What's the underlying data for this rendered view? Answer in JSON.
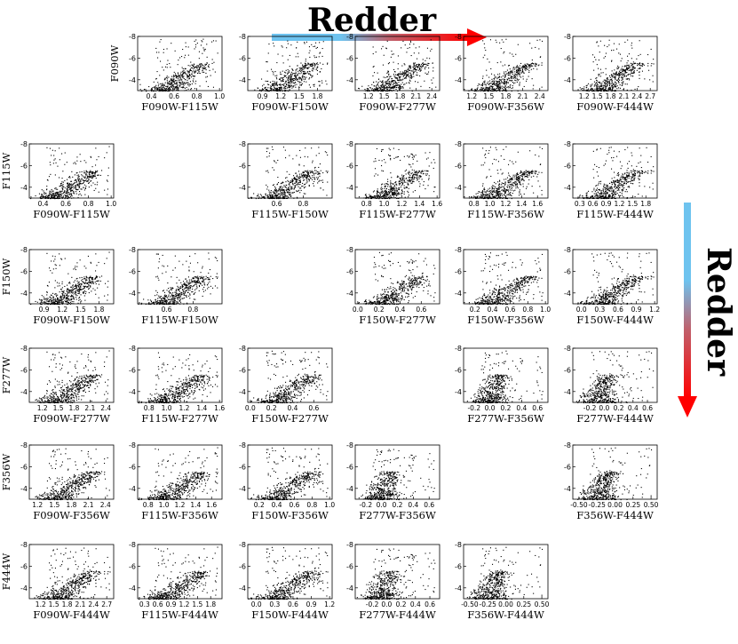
{
  "chart_data": {
    "type": "scatter",
    "title": "",
    "annotations": {
      "horizontal": "Redder",
      "vertical": "Redder"
    },
    "colors": {
      "arrow_start": "#6ec3ef",
      "arrow_end": "#ff0000",
      "points": "#000000"
    },
    "grid": false,
    "y_axis": {
      "inverted": true,
      "range": [
        -3,
        -8
      ],
      "ticks": [
        "-8",
        "-6",
        "-4"
      ]
    },
    "panels": [
      {
        "row": 0,
        "col": 1,
        "xlabel": "F090W-F115W",
        "ylabel": "F090W",
        "xticks": [
          "0.4",
          "0.6",
          "0.8",
          "1.0"
        ],
        "x_range": [
          0.3,
          1.0
        ]
      },
      {
        "row": 0,
        "col": 2,
        "xlabel": "F090W-F150W",
        "ylabel": "",
        "xticks": [
          "0.9",
          "1.2",
          "1.5",
          "1.8"
        ],
        "x_range": [
          0.7,
          2.0
        ]
      },
      {
        "row": 0,
        "col": 3,
        "xlabel": "F090W-F277W",
        "ylabel": "",
        "xticks": [
          "1.2",
          "1.5",
          "1.8",
          "2.1",
          "2.4"
        ],
        "x_range": [
          1.0,
          2.5
        ]
      },
      {
        "row": 0,
        "col": 4,
        "xlabel": "F090W-F356W",
        "ylabel": "",
        "xticks": [
          "1.2",
          "1.5",
          "1.8",
          "2.1",
          "2.4"
        ],
        "x_range": [
          1.1,
          2.5
        ]
      },
      {
        "row": 0,
        "col": 5,
        "xlabel": "F090W-F444W",
        "ylabel": "",
        "xticks": [
          "1.2",
          "1.5",
          "1.8",
          "2.1",
          "2.4",
          "2.7"
        ],
        "x_range": [
          1.0,
          2.8
        ]
      },
      {
        "row": 1,
        "col": 0,
        "xlabel": "F090W-F115W",
        "ylabel": "F115W",
        "xticks": [
          "0.4",
          "0.6",
          "0.8",
          "1.0"
        ],
        "x_range": [
          0.3,
          1.0
        ]
      },
      {
        "row": 1,
        "col": 2,
        "xlabel": "F115W-F150W",
        "ylabel": "",
        "xticks": [
          "0.6",
          "0.8"
        ],
        "x_range": [
          0.4,
          1.0
        ]
      },
      {
        "row": 1,
        "col": 3,
        "xlabel": "F115W-F277W",
        "ylabel": "",
        "xticks": [
          "0.8",
          "1.0",
          "1.2",
          "1.4",
          "1.6"
        ],
        "x_range": [
          0.7,
          1.6
        ]
      },
      {
        "row": 1,
        "col": 4,
        "xlabel": "F115W-F356W",
        "ylabel": "",
        "xticks": [
          "0.8",
          "1.0",
          "1.2",
          "1.4",
          "1.6"
        ],
        "x_range": [
          0.7,
          1.7
        ]
      },
      {
        "row": 1,
        "col": 5,
        "xlabel": "F115W-F444W",
        "ylabel": "",
        "xticks": [
          "0.3",
          "0.6",
          "0.9",
          "1.2",
          "1.5",
          "1.8"
        ],
        "x_range": [
          0.2,
          2.0
        ]
      },
      {
        "row": 2,
        "col": 0,
        "xlabel": "F090W-F150W",
        "ylabel": "F150W",
        "xticks": [
          "0.9",
          "1.2",
          "1.5",
          "1.8"
        ],
        "x_range": [
          0.7,
          2.0
        ]
      },
      {
        "row": 2,
        "col": 1,
        "xlabel": "F115W-F150W",
        "ylabel": "",
        "xticks": [
          "0.6",
          "0.8"
        ],
        "x_range": [
          0.4,
          1.0
        ]
      },
      {
        "row": 2,
        "col": 3,
        "xlabel": "F150W-F277W",
        "ylabel": "",
        "xticks": [
          "0.0",
          "0.2",
          "0.4",
          "0.6"
        ],
        "x_range": [
          0.0,
          0.75
        ]
      },
      {
        "row": 2,
        "col": 4,
        "xlabel": "F150W-F356W",
        "ylabel": "",
        "xticks": [
          "0.2",
          "0.4",
          "0.6",
          "0.8",
          "1.0"
        ],
        "x_range": [
          0.1,
          1.0
        ]
      },
      {
        "row": 2,
        "col": 5,
        "xlabel": "F150W-F444W",
        "ylabel": "",
        "xticks": [
          "0.0",
          "0.3",
          "0.6",
          "0.9",
          "1.2"
        ],
        "x_range": [
          -0.1,
          1.2
        ]
      },
      {
        "row": 3,
        "col": 0,
        "xlabel": "F090W-F277W",
        "ylabel": "F277W",
        "xticks": [
          "1.2",
          "1.5",
          "1.8",
          "2.1",
          "2.4"
        ],
        "x_range": [
          1.0,
          2.5
        ]
      },
      {
        "row": 3,
        "col": 1,
        "xlabel": "F115W-F277W",
        "ylabel": "",
        "xticks": [
          "0.8",
          "1.0",
          "1.2",
          "1.4",
          "1.6"
        ],
        "x_range": [
          0.7,
          1.6
        ]
      },
      {
        "row": 3,
        "col": 2,
        "xlabel": "F150W-F277W",
        "ylabel": "",
        "xticks": [
          "0.0",
          "0.2",
          "0.4",
          "0.6"
        ],
        "x_range": [
          0.0,
          0.75
        ]
      },
      {
        "row": 3,
        "col": 4,
        "xlabel": "F277W-F356W",
        "ylabel": "",
        "xticks": [
          "-0.2",
          "0.0",
          "0.2",
          "0.4",
          "0.6"
        ],
        "x_range": [
          -0.3,
          0.7
        ]
      },
      {
        "row": 3,
        "col": 5,
        "xlabel": "F277W-F444W",
        "ylabel": "",
        "xticks": [
          "-0.2",
          "0.0",
          "0.2",
          "0.4",
          "0.6"
        ],
        "x_range": [
          -0.4,
          0.7
        ]
      },
      {
        "row": 4,
        "col": 0,
        "xlabel": "F090W-F356W",
        "ylabel": "F356W",
        "xticks": [
          "1.2",
          "1.5",
          "1.8",
          "2.1",
          "2.4"
        ],
        "x_range": [
          1.1,
          2.5
        ]
      },
      {
        "row": 4,
        "col": 1,
        "xlabel": "F115W-F356W",
        "ylabel": "",
        "xticks": [
          "0.8",
          "1.0",
          "1.2",
          "1.4",
          "1.6"
        ],
        "x_range": [
          0.7,
          1.7
        ]
      },
      {
        "row": 4,
        "col": 2,
        "xlabel": "F150W-F356W",
        "ylabel": "",
        "xticks": [
          "0.2",
          "0.4",
          "0.6",
          "0.8",
          "1.0"
        ],
        "x_range": [
          0.1,
          1.0
        ]
      },
      {
        "row": 4,
        "col": 3,
        "xlabel": "F277W-F356W",
        "ylabel": "",
        "xticks": [
          "-0.2",
          "0.0",
          "0.2",
          "0.4",
          "0.6"
        ],
        "x_range": [
          -0.3,
          0.7
        ]
      },
      {
        "row": 4,
        "col": 5,
        "xlabel": "F356W-F444W",
        "ylabel": "",
        "xticks": [
          "-0.50",
          "-0.25",
          "0.00",
          "0.25",
          "0.50"
        ],
        "x_range": [
          -0.55,
          0.55
        ]
      },
      {
        "row": 5,
        "col": 0,
        "xlabel": "F090W-F444W",
        "ylabel": "F444W",
        "xticks": [
          "1.2",
          "1.5",
          "1.8",
          "2.1",
          "2.4",
          "2.7"
        ],
        "x_range": [
          1.0,
          2.8
        ]
      },
      {
        "row": 5,
        "col": 1,
        "xlabel": "F115W-F444W",
        "ylabel": "",
        "xticks": [
          "0.3",
          "0.6",
          "0.9",
          "1.2",
          "1.5",
          "1.8"
        ],
        "x_range": [
          0.2,
          2.0
        ]
      },
      {
        "row": 5,
        "col": 2,
        "xlabel": "F150W-F444W",
        "ylabel": "",
        "xticks": [
          "0.0",
          "0.3",
          "0.6",
          "0.9",
          "1.2"
        ],
        "x_range": [
          -0.1,
          1.2
        ]
      },
      {
        "row": 5,
        "col": 3,
        "xlabel": "F277W-F444W",
        "ylabel": "",
        "xticks": [
          "-0.2",
          "0.0",
          "0.2",
          "0.4",
          "0.6"
        ],
        "x_range": [
          -0.4,
          0.7
        ]
      },
      {
        "row": 5,
        "col": 4,
        "xlabel": "F356W-F444W",
        "ylabel": "",
        "xticks": [
          "-0.50",
          "-0.25",
          "0.00",
          "0.25",
          "0.50"
        ],
        "x_range": [
          -0.55,
          0.55
        ]
      }
    ]
  }
}
